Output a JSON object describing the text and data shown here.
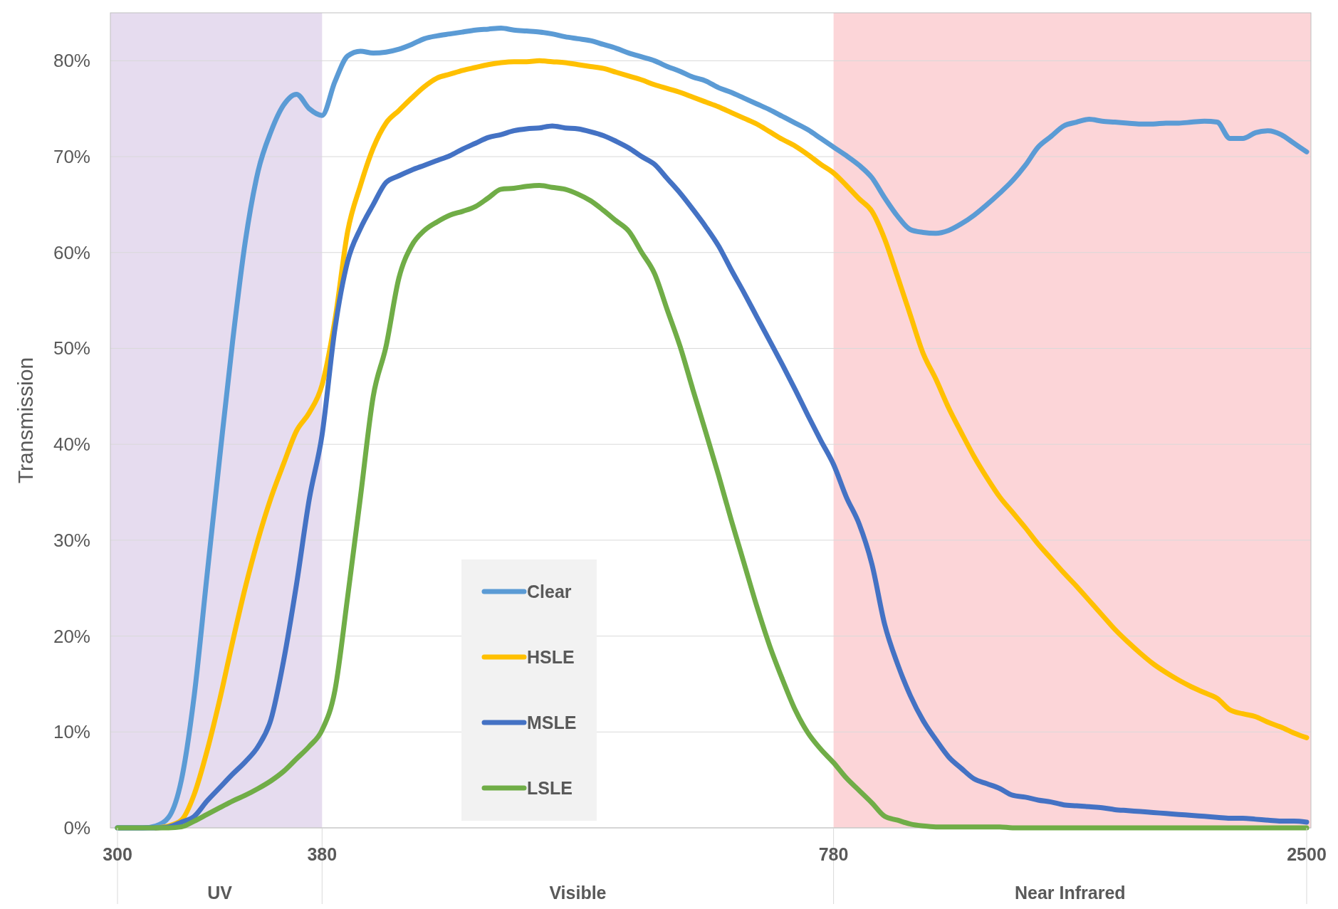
{
  "chart_data": {
    "type": "line",
    "ylabel": "Transmission",
    "categories": [
      "300",
      null,
      null,
      null,
      null,
      null,
      null,
      null,
      null,
      null,
      null,
      null,
      null,
      null,
      null,
      null,
      "380",
      null,
      null,
      null,
      null,
      null,
      null,
      null,
      null,
      null,
      null,
      null,
      null,
      null,
      null,
      null,
      null,
      null,
      null,
      null,
      null,
      null,
      null,
      null,
      null,
      null,
      null,
      null,
      null,
      null,
      null,
      null,
      null,
      null,
      null,
      null,
      null,
      null,
      null,
      null,
      "780",
      null,
      null,
      null,
      null,
      null,
      null,
      null,
      null,
      null,
      null,
      null,
      null,
      null,
      null,
      null,
      null,
      null,
      null,
      null,
      null,
      null,
      null,
      null,
      null,
      null,
      null,
      null,
      null,
      null,
      null,
      null,
      null,
      null,
      null,
      null,
      null,
      "2500"
    ],
    "ylim": [
      0,
      85
    ],
    "yticks": [
      {
        "value": 0,
        "label": "0%"
      },
      {
        "value": 10,
        "label": "10%"
      },
      {
        "value": 20,
        "label": "20%"
      },
      {
        "value": 30,
        "label": "30%"
      },
      {
        "value": 40,
        "label": "40%"
      },
      {
        "value": 50,
        "label": "50%"
      },
      {
        "value": 60,
        "label": "60%"
      },
      {
        "value": 70,
        "label": "70%"
      },
      {
        "value": 80,
        "label": "80%"
      }
    ],
    "grid": "y",
    "legend": "bottom",
    "line_style": "solid",
    "annotations": [
      "UV",
      "Visible",
      "Near Infrared"
    ],
    "bands": [
      {
        "axis": "x",
        "from": "300",
        "to": "380",
        "color": "#e6dcef"
      },
      {
        "axis": "x",
        "from": "780",
        "to": "2500",
        "color": "#fcd5d8"
      }
    ],
    "series": [
      {
        "name": "Clear",
        "color": "#5b9bd5",
        "values": [
          0,
          0,
          0,
          0.2,
          1.1,
          5,
          13.8,
          26.3,
          38.7,
          50.7,
          61.2,
          68.5,
          72.6,
          75.4,
          76.5,
          75,
          74.3,
          77.8,
          80.5,
          81,
          80.8,
          80.9,
          81.2,
          81.7,
          82.3,
          82.6,
          82.8,
          83,
          83.2,
          83.3,
          83.4,
          83.2,
          83.1,
          83,
          82.8,
          82.5,
          82.3,
          82.1,
          81.7,
          81.3,
          80.8,
          80.4,
          80,
          79.4,
          78.9,
          78.3,
          77.9,
          77.2,
          76.7,
          76.1,
          75.5,
          74.9,
          74.2,
          73.5,
          72.8,
          71.9,
          71,
          70.1,
          69.1,
          67.8,
          65.7,
          63.8,
          62.4,
          62.1,
          62,
          62.3,
          63,
          63.9,
          65,
          66.2,
          67.5,
          69.1,
          71,
          72.1,
          73.2,
          73.6,
          73.9,
          73.7,
          73.6,
          73.5,
          73.4,
          73.4,
          73.5,
          73.5,
          73.6,
          73.7,
          73.6,
          71.9,
          71.9,
          72.5,
          72.7,
          72.3,
          71.4,
          70.5
        ]
      },
      {
        "name": "HSLE",
        "color": "#ffc000",
        "values": [
          null,
          null,
          null,
          0,
          0.2,
          0.8,
          3.5,
          8,
          13.4,
          19.4,
          25.1,
          30.1,
          34.4,
          38,
          41.4,
          43.3,
          46.2,
          52.9,
          62.2,
          67,
          70.9,
          73.5,
          74.8,
          76.1,
          77.3,
          78.2,
          78.6,
          79,
          79.3,
          79.6,
          79.8,
          79.9,
          79.9,
          80,
          79.9,
          79.8,
          79.6,
          79.4,
          79.2,
          78.8,
          78.4,
          78,
          77.5,
          77.1,
          76.7,
          76.2,
          75.7,
          75.2,
          74.6,
          74,
          73.4,
          72.6,
          71.8,
          71.1,
          70.2,
          69.2,
          68.3,
          67,
          65.6,
          64.3,
          61.4,
          57.5,
          53.5,
          49.5,
          46.8,
          43.8,
          41.2,
          38.7,
          36.5,
          34.5,
          32.9,
          31.3,
          29.6,
          28.1,
          26.6,
          25.2,
          23.7,
          22.2,
          20.7,
          19.4,
          18.2,
          17.1,
          16.2,
          15.4,
          14.7,
          14.1,
          13.5,
          12.3,
          11.9,
          11.6,
          11,
          10.5,
          9.9,
          9.4
        ]
      },
      {
        "name": "MSLE",
        "color": "#4472c4",
        "values": [
          0,
          0,
          0,
          0,
          0.1,
          0.6,
          1.2,
          2.8,
          4.2,
          5.6,
          6.9,
          8.5,
          11.3,
          17.5,
          25.4,
          34.3,
          41,
          52,
          59.1,
          62.5,
          65,
          67.3,
          68,
          68.6,
          69.1,
          69.6,
          70.1,
          70.8,
          71.4,
          72,
          72.3,
          72.7,
          72.9,
          73,
          73.2,
          73,
          72.9,
          72.6,
          72.2,
          71.6,
          70.9,
          70,
          69.2,
          67.7,
          66.2,
          64.5,
          62.7,
          60.7,
          58.2,
          55.8,
          53.3,
          50.8,
          48.3,
          45.7,
          43,
          40.4,
          37.9,
          34.5,
          31.7,
          27.5,
          21.2,
          17.1,
          13.8,
          11.2,
          9.2,
          7.4,
          6.2,
          5.1,
          4.6,
          4.1,
          3.4,
          3.2,
          2.9,
          2.7,
          2.4,
          2.3,
          2.2,
          2.1,
          1.9,
          1.8,
          1.7,
          1.6,
          1.5,
          1.4,
          1.3,
          1.2,
          1.1,
          1,
          1,
          0.9,
          0.8,
          0.7,
          0.7,
          0.6
        ]
      },
      {
        "name": "LSLE",
        "color": "#70ad47",
        "values": [
          0,
          0,
          0,
          0,
          0,
          0.1,
          0.7,
          1.4,
          2.1,
          2.8,
          3.4,
          4.1,
          4.9,
          5.9,
          7.2,
          8.5,
          10.2,
          14.3,
          24.1,
          34.5,
          45,
          50.2,
          57.3,
          60.7,
          62.3,
          63.2,
          63.9,
          64.3,
          64.8,
          65.7,
          66.6,
          66.7,
          66.9,
          67,
          66.8,
          66.6,
          66.1,
          65.4,
          64.4,
          63.3,
          62.2,
          60,
          57.8,
          54,
          50.2,
          45.7,
          41.3,
          36.8,
          32.1,
          27.6,
          23.1,
          19,
          15.5,
          12.3,
          9.9,
          8.2,
          6.8,
          5.2,
          3.9,
          2.6,
          1.2,
          0.8,
          0.4,
          0.2,
          0.1,
          0.1,
          0.1,
          0.1,
          0.1,
          0.1,
          0,
          0,
          0,
          0,
          0,
          0,
          0,
          0,
          0,
          0,
          0,
          0,
          0,
          0,
          0,
          0,
          0,
          0,
          0,
          0,
          0,
          0,
          0,
          0
        ]
      }
    ]
  }
}
